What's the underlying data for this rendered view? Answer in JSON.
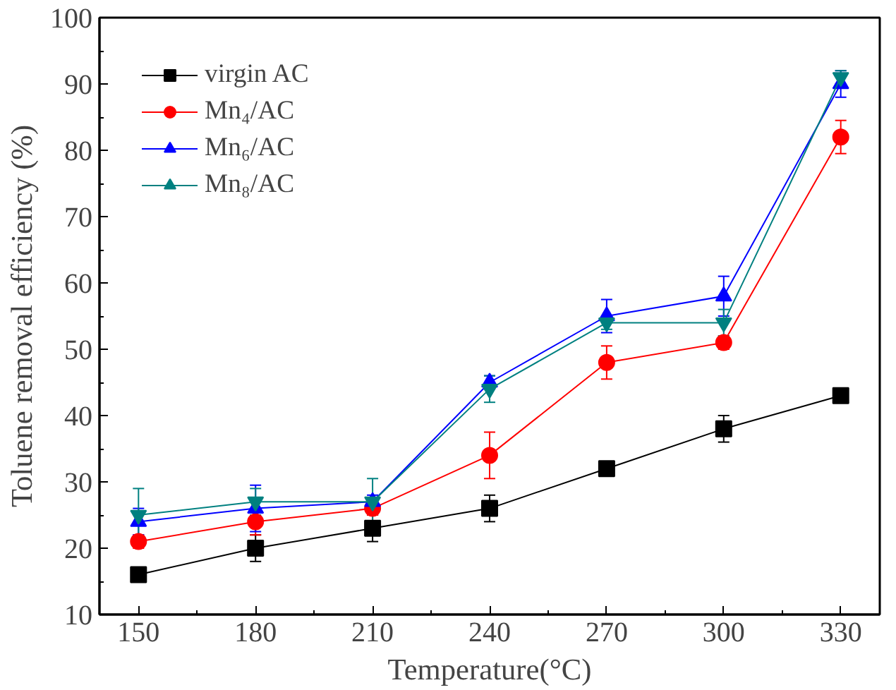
{
  "chart_data": {
    "type": "line",
    "xlabel": "Temperature(°C)",
    "ylabel": "Toluene removal efficiency (%)",
    "x": [
      150,
      180,
      210,
      240,
      270,
      300,
      330
    ],
    "xlim": [
      140,
      340
    ],
    "xticks": [
      150,
      180,
      210,
      240,
      270,
      300,
      330
    ],
    "ylim": [
      10,
      100
    ],
    "yticks": [
      10,
      20,
      30,
      40,
      50,
      60,
      70,
      80,
      90,
      100
    ],
    "legend": "top left",
    "grid": false,
    "line_style": "solid",
    "series": [
      {
        "name": "virgin AC",
        "color": "#000000",
        "marker": "square",
        "values": [
          16,
          20,
          23,
          26,
          32,
          38,
          43
        ],
        "errors": [
          1,
          2,
          2,
          2,
          1,
          2,
          1
        ]
      },
      {
        "name": "Mn₄/AC",
        "color": "#ff0000",
        "marker": "circle",
        "values": [
          21,
          24,
          26,
          34,
          48,
          51,
          82
        ],
        "errors": [
          1,
          2,
          1,
          3.5,
          2.5,
          1,
          2.5
        ]
      },
      {
        "name": "Mn₆/AC",
        "color": "#0000ff",
        "marker": "triangle",
        "values": [
          24,
          26,
          27,
          45,
          55,
          58,
          90
        ],
        "errors": [
          2,
          3.5,
          1,
          1,
          2.5,
          3,
          2
        ]
      },
      {
        "name": "Mn₈/AC",
        "color": "#008080",
        "marker": "triangle",
        "values": [
          25,
          27,
          27,
          44,
          54,
          54,
          91
        ],
        "errors": [
          4,
          2,
          3.5,
          2,
          1,
          2,
          1
        ]
      }
    ]
  }
}
